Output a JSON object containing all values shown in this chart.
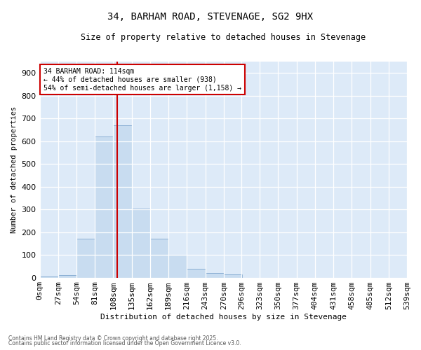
{
  "title_line1": "34, BARHAM ROAD, STEVENAGE, SG2 9HX",
  "title_line2": "Size of property relative to detached houses in Stevenage",
  "xlabel": "Distribution of detached houses by size in Stevenage",
  "ylabel": "Number of detached properties",
  "bar_color": "#c8dcf0",
  "bar_edge_color": "#8aafd4",
  "background_color": "#ddeaf8",
  "grid_color": "#ffffff",
  "vline_color": "#cc0000",
  "vline_x": 114,
  "bin_edges": [
    0,
    27,
    54,
    81,
    108,
    135,
    162,
    189,
    216,
    243,
    270,
    296,
    323,
    350,
    377,
    404,
    431,
    458,
    485,
    512,
    539
  ],
  "bin_labels": [
    "0sqm",
    "27sqm",
    "54sqm",
    "81sqm",
    "108sqm",
    "135sqm",
    "162sqm",
    "189sqm",
    "216sqm",
    "243sqm",
    "270sqm",
    "296sqm",
    "323sqm",
    "350sqm",
    "377sqm",
    "404sqm",
    "431sqm",
    "458sqm",
    "485sqm",
    "512sqm",
    "539sqm"
  ],
  "counts": [
    5,
    10,
    170,
    620,
    670,
    305,
    170,
    100,
    40,
    20,
    15,
    0,
    0,
    0,
    0,
    0,
    0,
    0,
    0,
    0
  ],
  "ylim": [
    0,
    950
  ],
  "yticks": [
    0,
    100,
    200,
    300,
    400,
    500,
    600,
    700,
    800,
    900
  ],
  "ann_line1": "34 BARHAM ROAD: 114sqm",
  "ann_line2": "← 44% of detached houses are smaller (938)",
  "ann_line3": "54% of semi-detached houses are larger (1,158) →",
  "ann_box_facecolor": "white",
  "ann_box_edgecolor": "#cc0000",
  "footer_line1": "Contains HM Land Registry data © Crown copyright and database right 2025.",
  "footer_line2": "Contains public sector information licensed under the Open Government Licence v3.0."
}
